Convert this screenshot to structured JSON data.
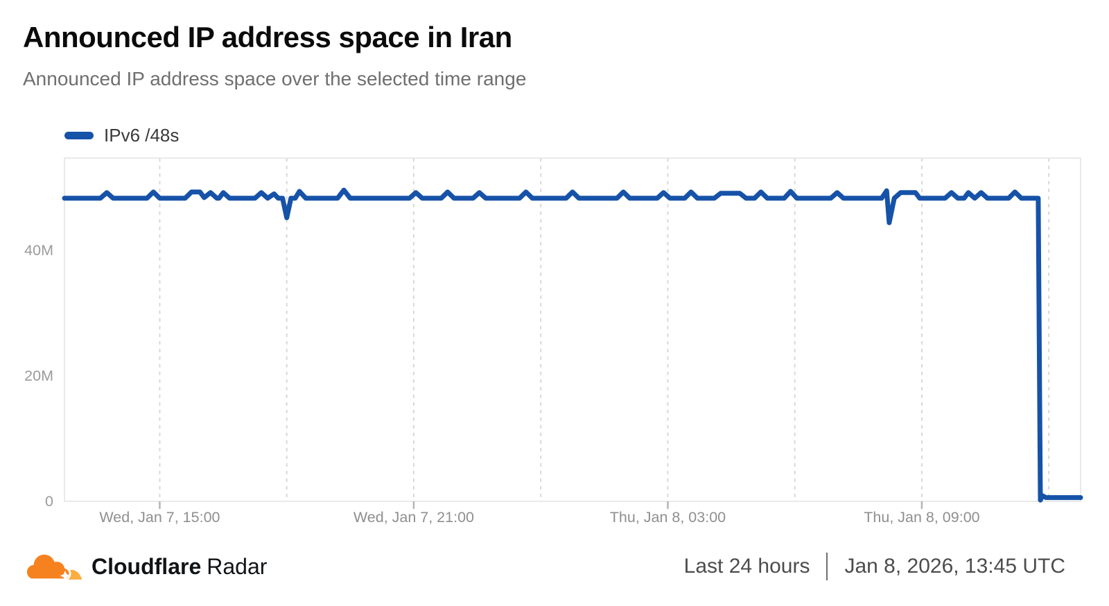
{
  "header": {
    "title": "Announced IP address space in Iran",
    "subtitle": "Announced IP address space over the selected time range"
  },
  "legend": {
    "items": [
      {
        "label": "IPv6 /48s",
        "color": "#1652A8"
      }
    ]
  },
  "chart_data": {
    "type": "line",
    "title": "Announced IP address space in Iran",
    "unit_note": "y values in millions of IPv6 /48s",
    "grid": "vertical-dashed",
    "legend_position": "top-left",
    "xlim_hours": [
      0,
      24
    ],
    "ylim": [
      0,
      54.7
    ],
    "y_ticks": [
      {
        "value": 0,
        "label": "0"
      },
      {
        "value": 20,
        "label": "20M"
      },
      {
        "value": 40,
        "label": "40M"
      }
    ],
    "x_gridlines_hours": [
      2.25,
      5.25,
      8.25,
      11.25,
      14.25,
      17.25,
      20.25,
      23.25
    ],
    "x_ticks": [
      {
        "hour": 2.25,
        "label": "Wed, Jan 7, 15:00"
      },
      {
        "hour": 8.25,
        "label": "Wed, Jan 7, 21:00"
      },
      {
        "hour": 14.25,
        "label": "Thu, Jan 8, 03:00"
      },
      {
        "hour": 20.25,
        "label": "Thu, Jan 8, 09:00"
      }
    ],
    "series": [
      {
        "name": "IPv6 /48s",
        "color": "#1652A8",
        "points": [
          [
            0,
            48.3
          ],
          [
            0.85,
            48.3
          ],
          [
            1.0,
            49.2
          ],
          [
            1.15,
            48.3
          ],
          [
            1.95,
            48.3
          ],
          [
            2.1,
            49.3
          ],
          [
            2.25,
            48.3
          ],
          [
            2.85,
            48.3
          ],
          [
            3.0,
            49.3
          ],
          [
            3.2,
            49.3
          ],
          [
            3.3,
            48.4
          ],
          [
            3.45,
            49.2
          ],
          [
            3.6,
            48.3
          ],
          [
            3.65,
            48.3
          ],
          [
            3.75,
            49.2
          ],
          [
            3.9,
            48.3
          ],
          [
            4.5,
            48.3
          ],
          [
            4.65,
            49.2
          ],
          [
            4.8,
            48.3
          ],
          [
            4.95,
            49.0
          ],
          [
            5.05,
            48.3
          ],
          [
            5.15,
            48.3
          ],
          [
            5.25,
            45.2
          ],
          [
            5.35,
            48.3
          ],
          [
            5.45,
            48.3
          ],
          [
            5.55,
            49.4
          ],
          [
            5.7,
            48.3
          ],
          [
            6.45,
            48.3
          ],
          [
            6.6,
            49.6
          ],
          [
            6.75,
            48.3
          ],
          [
            8.15,
            48.3
          ],
          [
            8.3,
            49.2
          ],
          [
            8.45,
            48.3
          ],
          [
            8.9,
            48.3
          ],
          [
            9.05,
            49.3
          ],
          [
            9.2,
            48.3
          ],
          [
            9.65,
            48.3
          ],
          [
            9.8,
            49.2
          ],
          [
            9.95,
            48.3
          ],
          [
            10.75,
            48.3
          ],
          [
            10.9,
            49.3
          ],
          [
            11.05,
            48.3
          ],
          [
            11.85,
            48.3
          ],
          [
            12.0,
            49.3
          ],
          [
            12.15,
            48.3
          ],
          [
            13.05,
            48.3
          ],
          [
            13.2,
            49.3
          ],
          [
            13.35,
            48.3
          ],
          [
            14.0,
            48.3
          ],
          [
            14.15,
            49.2
          ],
          [
            14.3,
            48.3
          ],
          [
            14.65,
            48.3
          ],
          [
            14.8,
            49.3
          ],
          [
            14.95,
            48.3
          ],
          [
            15.35,
            48.3
          ],
          [
            15.5,
            49.1
          ],
          [
            15.95,
            49.1
          ],
          [
            16.1,
            48.3
          ],
          [
            16.3,
            48.3
          ],
          [
            16.45,
            49.3
          ],
          [
            16.6,
            48.3
          ],
          [
            17.0,
            48.3
          ],
          [
            17.15,
            49.4
          ],
          [
            17.3,
            48.3
          ],
          [
            18.1,
            48.3
          ],
          [
            18.25,
            49.2
          ],
          [
            18.4,
            48.3
          ],
          [
            19.3,
            48.3
          ],
          [
            19.42,
            49.5
          ],
          [
            19.48,
            44.4
          ],
          [
            19.6,
            48.3
          ],
          [
            19.75,
            49.2
          ],
          [
            20.1,
            49.2
          ],
          [
            20.2,
            48.3
          ],
          [
            20.8,
            48.3
          ],
          [
            20.95,
            49.2
          ],
          [
            21.1,
            48.3
          ],
          [
            21.25,
            48.3
          ],
          [
            21.35,
            49.2
          ],
          [
            21.5,
            48.3
          ],
          [
            21.65,
            49.2
          ],
          [
            21.8,
            48.3
          ],
          [
            22.3,
            48.3
          ],
          [
            22.45,
            49.3
          ],
          [
            22.6,
            48.3
          ],
          [
            23.0,
            48.3
          ],
          [
            23.05,
            0.2
          ],
          [
            23.1,
            0.9
          ],
          [
            23.18,
            0.6
          ],
          [
            24,
            0.6
          ]
        ]
      }
    ]
  },
  "footer": {
    "brand_bold": "Cloudflare",
    "brand_regular": "Radar",
    "time_range": "Last 24 hours",
    "timestamp": "Jan 8, 2026, 13:45 UTC"
  },
  "colors": {
    "line": "#1652A8",
    "grid": "#d9d9d9",
    "plot_border": "#e2e2e2",
    "tick": "#b5b5b5",
    "axis_text": "#8f8f8f",
    "cloud_dark": "#F6821F",
    "cloud_light": "#FBAD41"
  }
}
